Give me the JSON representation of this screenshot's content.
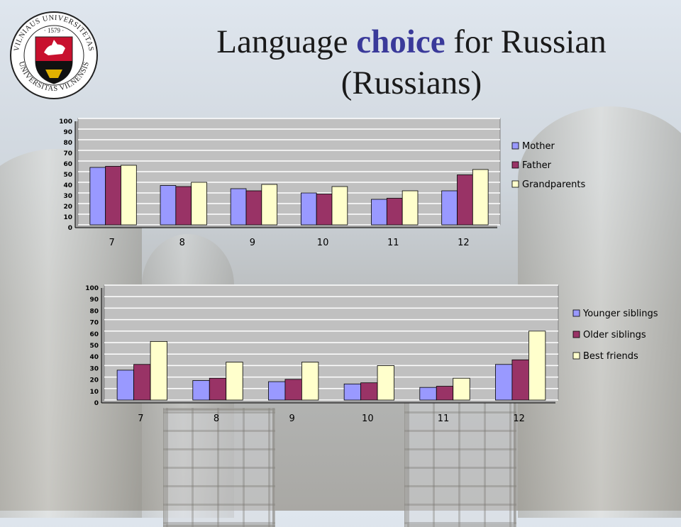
{
  "slide": {
    "title_part1": "Language ",
    "title_accent": "choice",
    "title_part2": " for Russian",
    "title_line2": "(Russians)"
  },
  "logo": {
    "top_text": "VILNIAUS UNIVERSITETAS",
    "bottom_text": "UNIVERSITAS VILNENSIS",
    "year": "· 1579 ·"
  },
  "colors": {
    "series1": "#9999ff",
    "series2": "#993366",
    "series3": "#ffffcc",
    "plot_bg": "#c0c0c0"
  },
  "chart_data": [
    {
      "type": "bar",
      "categories": [
        "7",
        "8",
        "9",
        "10",
        "11",
        "12"
      ],
      "ylim": [
        0,
        100
      ],
      "yticks": [
        "0",
        "10",
        "20",
        "30",
        "40",
        "50",
        "60",
        "70",
        "80",
        "90",
        "100"
      ],
      "grid": true,
      "legend": "right",
      "series": [
        {
          "name": "Mother",
          "values": [
            54,
            37,
            34,
            30,
            24,
            32
          ]
        },
        {
          "name": "Father",
          "values": [
            55,
            36,
            32,
            29,
            25,
            47
          ]
        },
        {
          "name": "Grandparents",
          "values": [
            56,
            40,
            38,
            36,
            32,
            52
          ]
        }
      ]
    },
    {
      "type": "bar",
      "categories": [
        "7",
        "8",
        "9",
        "10",
        "11",
        "12"
      ],
      "ylim": [
        0,
        100
      ],
      "yticks": [
        "0",
        "10",
        "20",
        "30",
        "40",
        "50",
        "60",
        "70",
        "80",
        "90",
        "100"
      ],
      "grid": true,
      "legend": "right",
      "series": [
        {
          "name": "Younger siblings",
          "values": [
            26,
            17,
            16,
            14,
            11,
            31
          ]
        },
        {
          "name": "Older siblings",
          "values": [
            31,
            19,
            18,
            15,
            12,
            35
          ]
        },
        {
          "name": "Best friends",
          "values": [
            51,
            33,
            33,
            30,
            19,
            60
          ]
        }
      ]
    }
  ]
}
